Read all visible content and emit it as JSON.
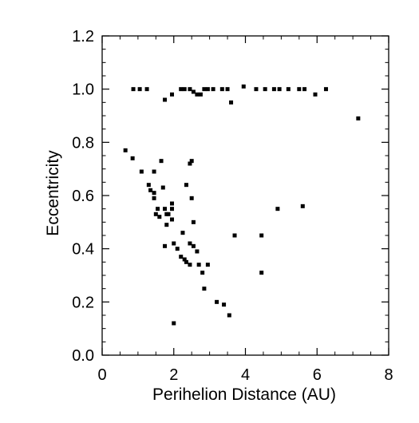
{
  "chart_data": {
    "type": "scatter",
    "title": "",
    "xlabel": "Perihelion Distance (AU)",
    "ylabel": "Eccentricity",
    "xlim": [
      0,
      8
    ],
    "ylim": [
      0,
      1.2
    ],
    "x_ticks": [
      "0",
      "2",
      "4",
      "6",
      "8"
    ],
    "y_ticks": [
      "0.0",
      "0.2",
      "0.4",
      "0.6",
      "0.8",
      "1.0",
      "1.2"
    ],
    "grid": false,
    "legend": "none",
    "marker_color": "#000000",
    "points": [
      [
        0.87,
        1.0
      ],
      [
        1.05,
        1.0
      ],
      [
        1.25,
        1.0
      ],
      [
        1.95,
        0.98
      ],
      [
        2.2,
        1.0
      ],
      [
        2.3,
        1.0
      ],
      [
        2.45,
        1.0
      ],
      [
        2.55,
        0.99
      ],
      [
        2.65,
        0.98
      ],
      [
        2.75,
        0.98
      ],
      [
        2.85,
        1.0
      ],
      [
        2.95,
        1.0
      ],
      [
        3.1,
        1.0
      ],
      [
        3.35,
        1.0
      ],
      [
        3.5,
        1.0
      ],
      [
        3.6,
        0.95
      ],
      [
        3.95,
        1.01
      ],
      [
        4.3,
        1.0
      ],
      [
        4.55,
        1.0
      ],
      [
        4.8,
        1.0
      ],
      [
        4.95,
        1.0
      ],
      [
        5.2,
        1.0
      ],
      [
        5.5,
        1.0
      ],
      [
        5.65,
        1.0
      ],
      [
        5.95,
        0.98
      ],
      [
        6.25,
        1.0
      ],
      [
        1.75,
        0.96
      ],
      [
        7.15,
        0.89
      ],
      [
        0.65,
        0.77
      ],
      [
        0.85,
        0.74
      ],
      [
        1.1,
        0.69
      ],
      [
        1.45,
        0.69
      ],
      [
        1.65,
        0.73
      ],
      [
        1.3,
        0.64
      ],
      [
        1.35,
        0.62
      ],
      [
        1.45,
        0.61
      ],
      [
        1.45,
        0.59
      ],
      [
        1.55,
        0.55
      ],
      [
        1.5,
        0.53
      ],
      [
        1.6,
        0.52
      ],
      [
        1.7,
        0.63
      ],
      [
        1.75,
        0.55
      ],
      [
        1.8,
        0.53
      ],
      [
        1.85,
        0.53
      ],
      [
        1.8,
        0.49
      ],
      [
        1.95,
        0.57
      ],
      [
        1.95,
        0.55
      ],
      [
        1.95,
        0.51
      ],
      [
        2.35,
        0.64
      ],
      [
        2.45,
        0.72
      ],
      [
        2.5,
        0.73
      ],
      [
        2.5,
        0.59
      ],
      [
        2.55,
        0.5
      ],
      [
        2.25,
        0.46
      ],
      [
        1.75,
        0.41
      ],
      [
        2.0,
        0.42
      ],
      [
        2.1,
        0.4
      ],
      [
        2.45,
        0.42
      ],
      [
        2.55,
        0.41
      ],
      [
        2.65,
        0.39
      ],
      [
        2.2,
        0.37
      ],
      [
        2.3,
        0.36
      ],
      [
        2.35,
        0.35
      ],
      [
        2.45,
        0.34
      ],
      [
        2.7,
        0.34
      ],
      [
        2.8,
        0.31
      ],
      [
        2.95,
        0.34
      ],
      [
        2.85,
        0.25
      ],
      [
        3.2,
        0.2
      ],
      [
        3.4,
        0.19
      ],
      [
        3.55,
        0.15
      ],
      [
        2.0,
        0.12
      ],
      [
        3.7,
        0.45
      ],
      [
        4.45,
        0.45
      ],
      [
        4.45,
        0.31
      ],
      [
        4.9,
        0.55
      ],
      [
        5.6,
        0.56
      ]
    ]
  }
}
